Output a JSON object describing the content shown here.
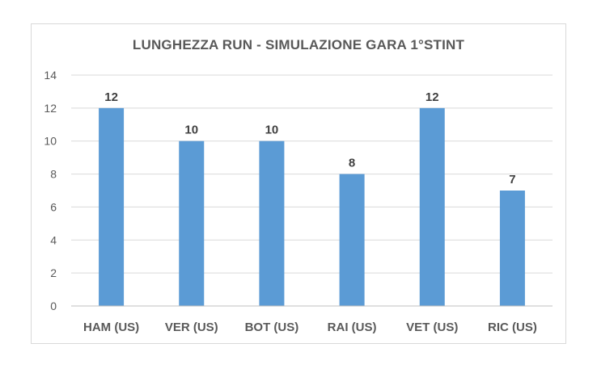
{
  "chart_data": {
    "type": "bar",
    "title": "LUNGHEZZA RUN - SIMULAZIONE GARA 1°STINT",
    "categories": [
      "HAM (US)",
      "VER (US)",
      "BOT (US)",
      "RAI (US)",
      "VET (US)",
      "RIC (US)"
    ],
    "values": [
      12,
      10,
      10,
      8,
      12,
      7
    ],
    "data_labels": [
      "12",
      "10",
      "10",
      "8",
      "12",
      "7"
    ],
    "ylim": [
      0,
      14
    ],
    "yticks": [
      "0",
      "2",
      "4",
      "6",
      "8",
      "10",
      "12",
      "14"
    ],
    "xlabel": "",
    "ylabel": "",
    "grid": true,
    "legend": "none",
    "bar_color": "#5b9bd5",
    "grid_color": "#d9d9d9",
    "axis_color": "#bfbfbf"
  }
}
